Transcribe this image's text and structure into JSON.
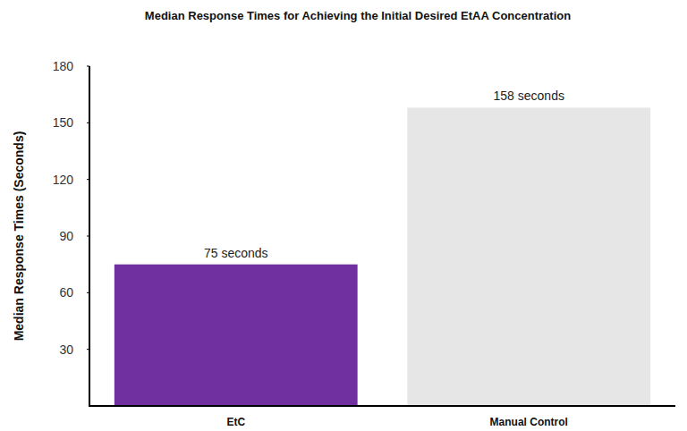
{
  "chart_data": {
    "type": "bar",
    "title": "Median Response Times for Achieving the Initial Desired EtAA Concentration",
    "y_label": "Median Response Times (Seconds)",
    "categories": [
      "EtC",
      "Manual Control"
    ],
    "values": [
      75,
      158
    ],
    "value_labels": [
      "75 seconds",
      "158 seconds"
    ],
    "colors": [
      "#7030a0",
      "#e6e6e6"
    ],
    "ylim": [
      0,
      180
    ],
    "yticks": [
      30,
      60,
      90,
      120,
      150,
      180
    ],
    "grid": false,
    "data_labels": true
  }
}
